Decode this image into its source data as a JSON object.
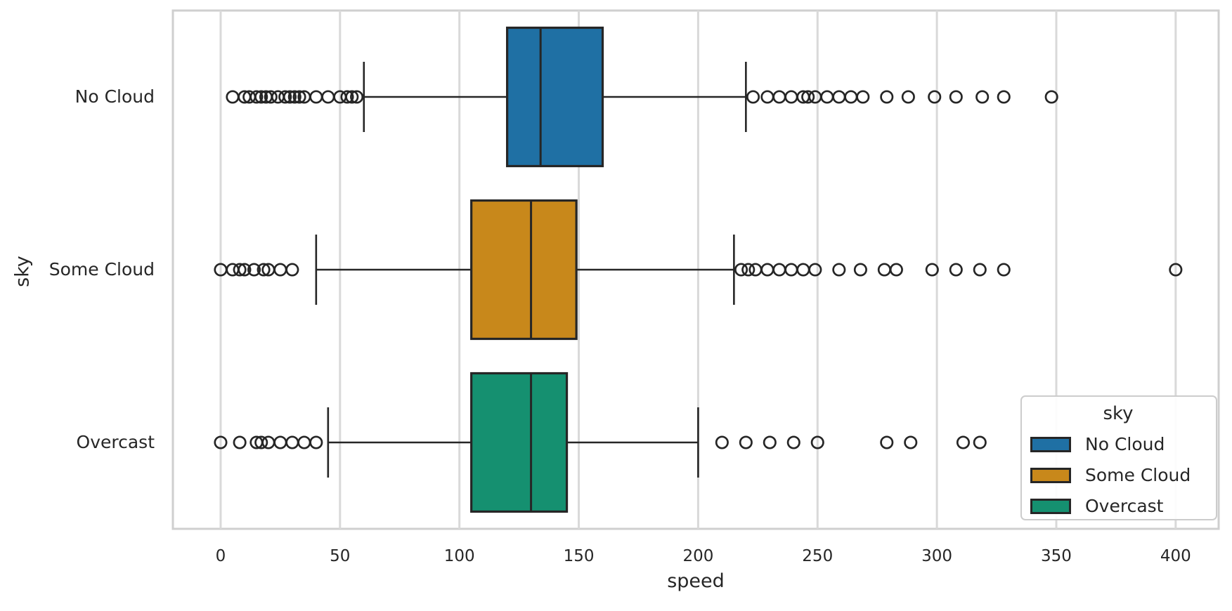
{
  "chart_data": {
    "type": "boxplot",
    "orientation": "horizontal",
    "title": "",
    "xlabel": "speed",
    "ylabel": "sky",
    "xlim": [
      -20,
      418
    ],
    "xticks": [
      0,
      50,
      100,
      150,
      200,
      250,
      300,
      350,
      400
    ],
    "grid": "vertical-only",
    "categories": [
      "No Cloud",
      "Some Cloud",
      "Overcast"
    ],
    "series": [
      {
        "label": "No Cloud",
        "color": "#1F70A4",
        "whisker_low": 60,
        "q1": 120,
        "median": 134,
        "q3": 160,
        "whisker_high": 220,
        "outliers": [
          5,
          10,
          12,
          15,
          17,
          19,
          21,
          24,
          27,
          29,
          31,
          33,
          35,
          40,
          45,
          50,
          53,
          55,
          57,
          223,
          229,
          234,
          239,
          244,
          246,
          249,
          254,
          259,
          264,
          269,
          279,
          288,
          299,
          308,
          319,
          328,
          348
        ]
      },
      {
        "label": "Some Cloud",
        "color": "#C8881B",
        "whisker_low": 40,
        "q1": 105,
        "median": 130,
        "q3": 149,
        "whisker_high": 215,
        "outliers": [
          0,
          5,
          8,
          10,
          14,
          18,
          20,
          25,
          30,
          218,
          221,
          224,
          229,
          234,
          239,
          244,
          249,
          259,
          268,
          278,
          283,
          298,
          308,
          318,
          328,
          400
        ]
      },
      {
        "label": "Overcast",
        "color": "#159070",
        "whisker_low": 45,
        "q1": 105,
        "median": 130,
        "q3": 145,
        "whisker_high": 200,
        "outliers": [
          0,
          8,
          15,
          17,
          20,
          25,
          30,
          35,
          40,
          210,
          220,
          230,
          240,
          250,
          279,
          289,
          311,
          318
        ]
      }
    ],
    "legend": {
      "title": "sky",
      "position": "lower right",
      "entries": [
        {
          "label": "No Cloud",
          "color": "#1F70A4"
        },
        {
          "label": "Some Cloud",
          "color": "#C8881B"
        },
        {
          "label": "Overcast",
          "color": "#159070"
        }
      ]
    }
  },
  "style": {
    "background": "#FFFFFF",
    "grid_color": "#D9D9D9",
    "spine_color": "#CFCFCF",
    "edge_color": "#262626",
    "text_color": "#262626"
  }
}
